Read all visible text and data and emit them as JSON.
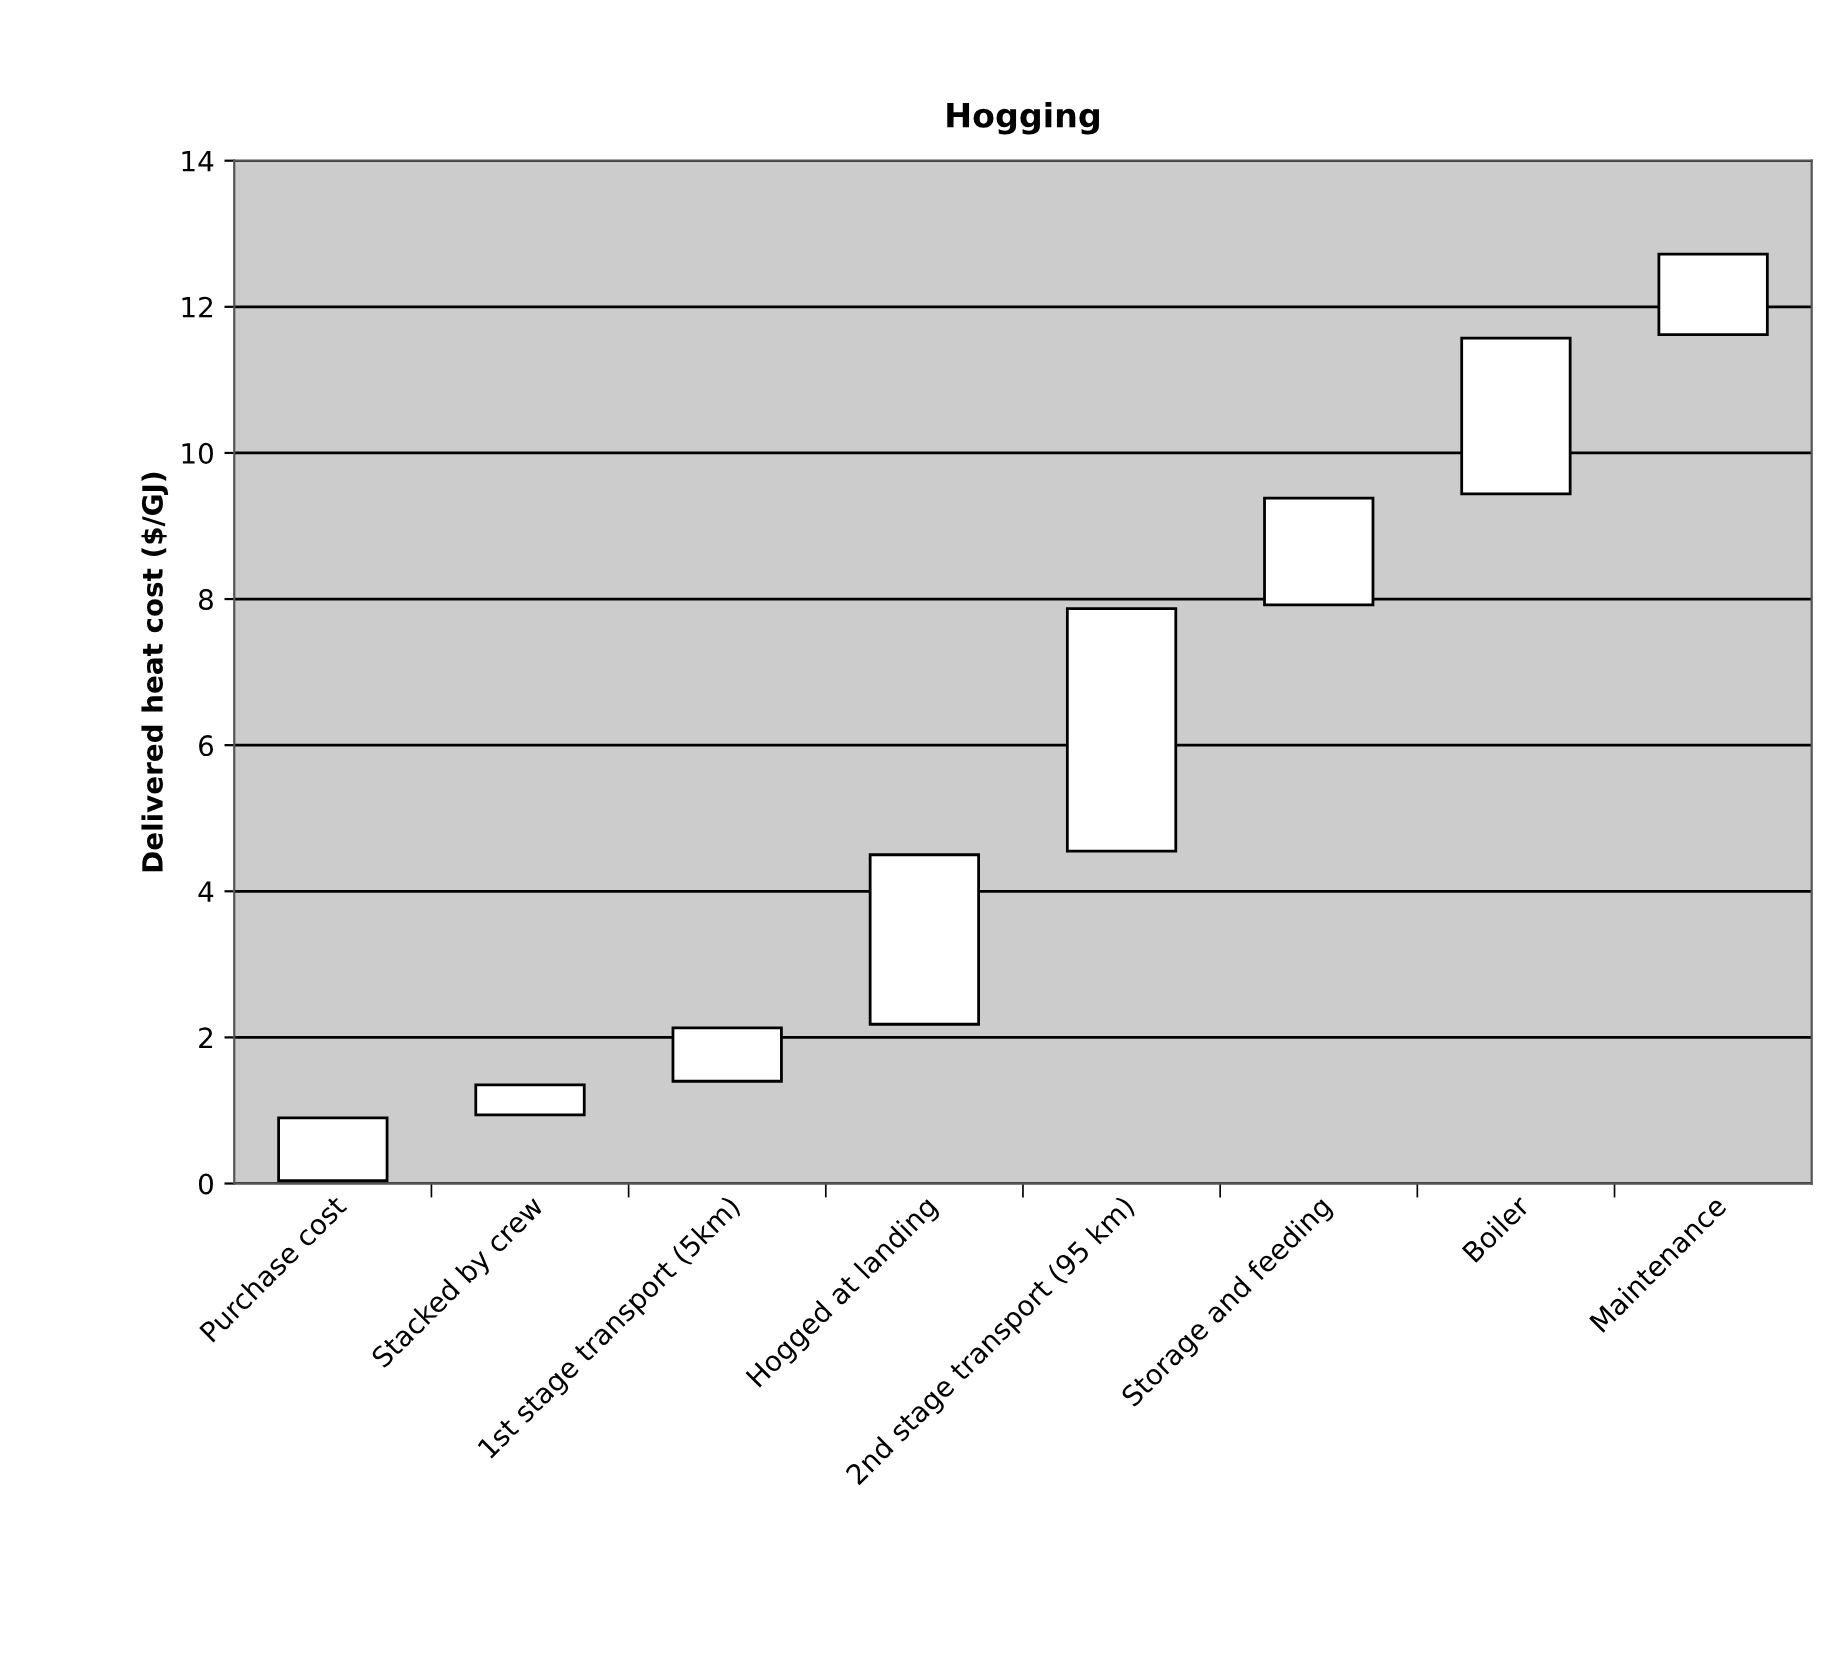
{
  "chart_data": {
    "type": "bar",
    "title": "Hogging",
    "ylabel": "Delivered heat cost ($/GJ)",
    "categories": [
      "Purchase cost",
      "Stacked by crew",
      "1st stage transport (5km)",
      "Hogged at landing",
      "2nd stage transport (95 km)",
      "Storage and feeding",
      "Boiler",
      "Maintenance"
    ],
    "base": [
      0.04,
      0.94,
      1.4,
      2.18,
      4.55,
      7.92,
      9.44,
      11.62
    ],
    "values": [
      0.86,
      0.41,
      0.73,
      2.32,
      3.32,
      1.46,
      2.13,
      1.1
    ],
    "color": "#ffffff",
    "ylim": [
      0,
      14
    ],
    "yticks": [
      0,
      2,
      4,
      6,
      8,
      10,
      12,
      14
    ],
    "grid": "y"
  }
}
